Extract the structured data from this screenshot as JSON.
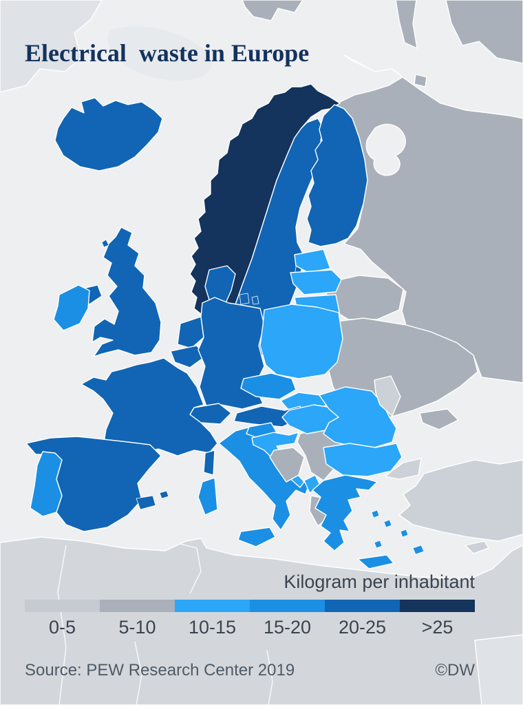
{
  "title": "Electrical  waste in Europe",
  "legend": {
    "title": "Kilogram per inhabitant",
    "bins": [
      {
        "label": "0-5",
        "color": "#c6cbd2"
      },
      {
        "label": "5-10",
        "color": "#a9b0b9"
      },
      {
        "label": "10-15",
        "color": "#2ba6f8"
      },
      {
        "label": "15-20",
        "color": "#1b8fe4"
      },
      {
        "label": "20-25",
        "color": "#1165b4"
      },
      {
        "label": ">25",
        "color": "#14335d"
      }
    ]
  },
  "footer": {
    "source": "Source: PEW Research Center 2019",
    "copyright": "©DW"
  },
  "map_colors": {
    "sea": "#edeff1",
    "non_data_land": "#a9b0b9",
    "non_data_land_light": "#ccd1d7",
    "distant_land": "#d3d7db",
    "distant_land_lighter": "#dfe2e6",
    "shelf": "#e7eaec",
    "border": "#ffffff"
  },
  "chart_data": {
    "type": "choropleth",
    "title": "Electrical waste in Europe",
    "unit": "Kilogram per inhabitant",
    "legend_position": "bottom",
    "bins": [
      "0-5",
      "5-10",
      "10-15",
      "15-20",
      "20-25",
      ">25"
    ],
    "countries": [
      {
        "id": "norway",
        "bin": ">25"
      },
      {
        "id": "iceland",
        "bin": "20-25"
      },
      {
        "id": "sweden",
        "bin": "20-25"
      },
      {
        "id": "finland",
        "bin": "20-25"
      },
      {
        "id": "denmark",
        "bin": "20-25"
      },
      {
        "id": "united-kingdom",
        "bin": "20-25"
      },
      {
        "id": "france",
        "bin": "20-25"
      },
      {
        "id": "germany",
        "bin": "20-25"
      },
      {
        "id": "netherlands",
        "bin": "20-25"
      },
      {
        "id": "belgium",
        "bin": "20-25"
      },
      {
        "id": "luxembourg",
        "bin": "20-25"
      },
      {
        "id": "switzerland",
        "bin": "20-25"
      },
      {
        "id": "austria",
        "bin": "20-25"
      },
      {
        "id": "spain",
        "bin": "20-25"
      },
      {
        "id": "ireland",
        "bin": "15-20"
      },
      {
        "id": "portugal",
        "bin": "15-20"
      },
      {
        "id": "italy",
        "bin": "15-20"
      },
      {
        "id": "greece",
        "bin": "15-20"
      },
      {
        "id": "czechia",
        "bin": "15-20"
      },
      {
        "id": "slovenia",
        "bin": "15-20"
      },
      {
        "id": "poland",
        "bin": "10-15"
      },
      {
        "id": "slovakia",
        "bin": "10-15"
      },
      {
        "id": "hungary",
        "bin": "10-15"
      },
      {
        "id": "croatia",
        "bin": "10-15"
      },
      {
        "id": "romania",
        "bin": "10-15"
      },
      {
        "id": "bulgaria",
        "bin": "10-15"
      },
      {
        "id": "estonia",
        "bin": "10-15"
      },
      {
        "id": "latvia",
        "bin": "10-15"
      },
      {
        "id": "lithuania",
        "bin": "10-15"
      },
      {
        "id": "montenegro",
        "bin": "10-15"
      }
    ],
    "no_data_regions": [
      "russia",
      "belarus",
      "ukraine",
      "moldova",
      "serbia",
      "bosnia-herzegovina",
      "albania",
      "north-macedonia",
      "kosovo",
      "turkey",
      "cyprus",
      "kaliningrad",
      "north-africa"
    ]
  }
}
